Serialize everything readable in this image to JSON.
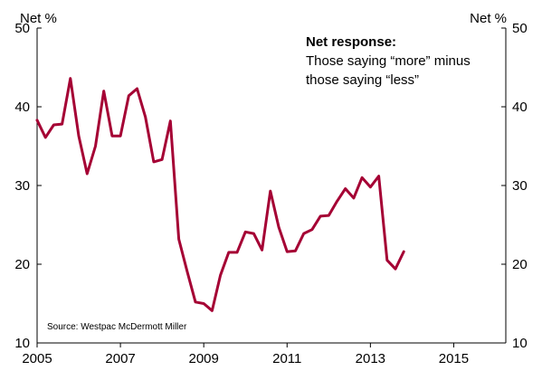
{
  "chart_data": {
    "type": "line",
    "title": "",
    "xlabel": "",
    "ylabel": "Net %",
    "ylabel_right": "Net %",
    "xlim": [
      2005,
      2016.25
    ],
    "ylim": [
      10,
      50
    ],
    "x_ticks": [
      2005,
      2007,
      2009,
      2011,
      2013,
      2015
    ],
    "x_tick_labels": [
      "2005",
      "2007",
      "2009",
      "2011",
      "2013",
      "2015"
    ],
    "y_ticks": [
      10,
      20,
      30,
      40,
      50
    ],
    "y_tick_labels": [
      "10",
      "20",
      "30",
      "40",
      "50"
    ],
    "grid": false,
    "series_color": "#A50034",
    "series": [
      {
        "name": "",
        "x": [
          2005.0,
          2005.2,
          2005.4,
          2005.6,
          2005.8,
          2006.0,
          2006.2,
          2006.4,
          2006.6,
          2006.8,
          2007.0,
          2007.2,
          2007.4,
          2007.6,
          2007.8,
          2008.0,
          2008.2,
          2008.4,
          2008.6,
          2008.8,
          2009.0,
          2009.2,
          2009.4,
          2009.6,
          2009.8,
          2010.0,
          2010.2,
          2010.4,
          2010.6,
          2010.8,
          2011.0,
          2011.2,
          2011.4,
          2011.6,
          2011.8,
          2012.0,
          2012.2,
          2012.4,
          2012.6,
          2012.8,
          2013.0,
          2013.2,
          2013.4,
          2013.6,
          2013.8,
          2014.0,
          2014.2,
          2014.4,
          2014.6,
          2014.8,
          2015.0,
          2015.2,
          2015.4,
          2015.6,
          2015.8
        ],
        "values": [
          38.3,
          36.1,
          37.7,
          37.8,
          43.6,
          36.3,
          31.5,
          35.0,
          42.0,
          36.3,
          36.3,
          41.4,
          42.3,
          38.7,
          33.0,
          33.3,
          38.2,
          23.2,
          19.1,
          15.2,
          15.0,
          14.1,
          18.6,
          21.5,
          21.5,
          24.1,
          23.9,
          21.8,
          29.3,
          24.7,
          21.6,
          21.7,
          23.9,
          24.4,
          26.1,
          26.2,
          28.0,
          29.6,
          28.4,
          31.0,
          29.8,
          31.2,
          20.5,
          19.4,
          21.6,
          null,
          null,
          null,
          null,
          null,
          null,
          null,
          null,
          null,
          null
        ]
      }
    ],
    "annotations": {
      "title": "Net response:",
      "lines": [
        "Those saying “more” minus",
        "those saying “less”"
      ],
      "source": "Source: Westpac McDermott Miller"
    }
  }
}
